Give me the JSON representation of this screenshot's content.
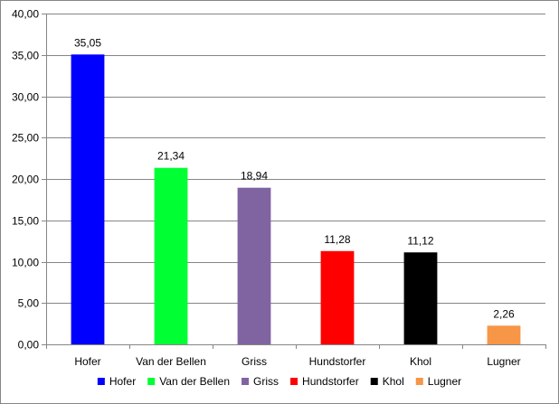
{
  "chart_data": {
    "type": "bar",
    "categories": [
      "Hofer",
      "Van der Bellen",
      "Griss",
      "Hundstorfer",
      "Khol",
      "Lugner"
    ],
    "values": [
      35.05,
      21.34,
      18.94,
      11.28,
      11.12,
      2.26
    ],
    "value_labels": [
      "35,05",
      "21,34",
      "18,94",
      "11,28",
      "11,12",
      "2,26"
    ],
    "colors": [
      "#0000ff",
      "#00ff33",
      "#8064a2",
      "#ff0000",
      "#000000",
      "#f79646"
    ],
    "ylim": [
      0,
      40
    ],
    "yticks": [
      0,
      5,
      10,
      15,
      20,
      25,
      30,
      35,
      40
    ],
    "ytick_labels": [
      "0,00",
      "5,00",
      "10,00",
      "15,00",
      "20,00",
      "25,00",
      "30,00",
      "35,00",
      "40,00"
    ],
    "grid": true,
    "legend_position": "bottom",
    "legend": [
      "Hofer",
      "Van der Bellen",
      "Griss",
      "Hundstorfer",
      "Khol",
      "Lugner"
    ]
  }
}
